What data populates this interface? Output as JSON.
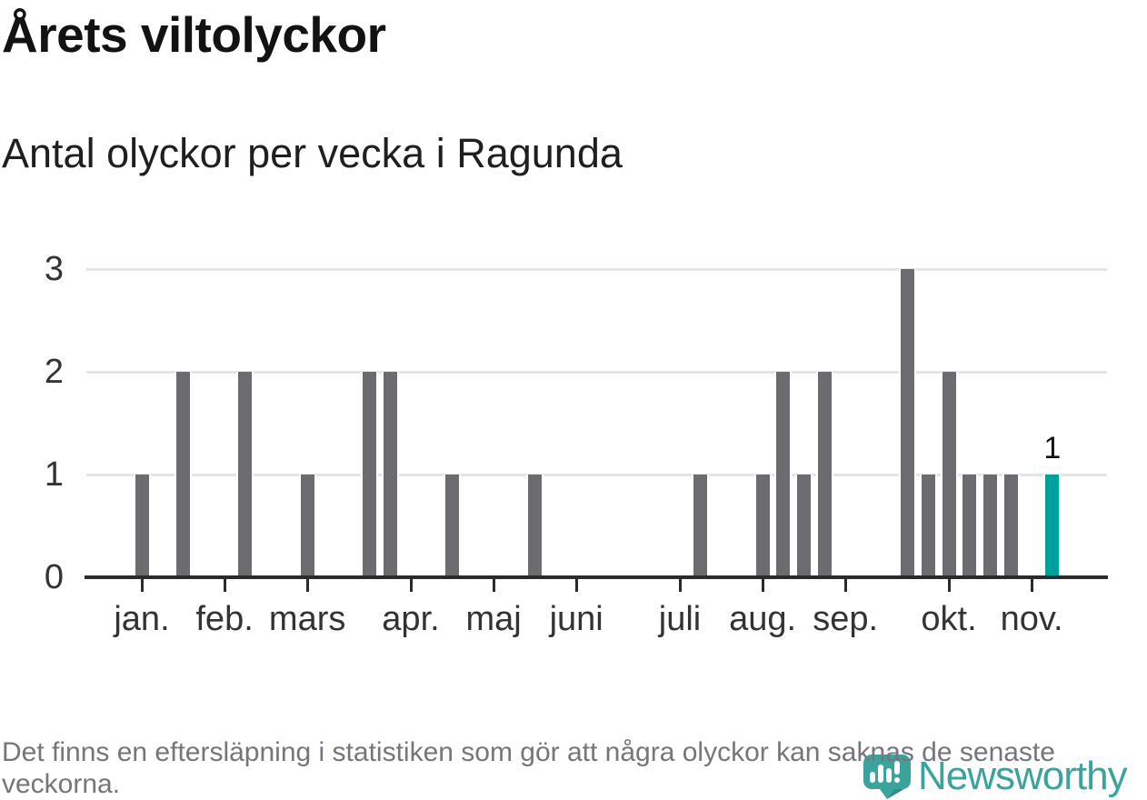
{
  "header": {
    "title": "Årets viltolyckor",
    "subtitle": "Antal olyckor per vecka i Ragunda"
  },
  "chart_data": {
    "type": "bar",
    "title": "Årets viltolyckor",
    "subtitle": "Antal olyckor per vecka i Ragunda",
    "x_unit": "week of year",
    "x_range_weeks": [
      1,
      47
    ],
    "ylim": [
      0,
      3
    ],
    "y_ticks": [
      0,
      1,
      2,
      3
    ],
    "grid": true,
    "legend": "none",
    "bar_color": "#6c6c70",
    "highlight_color": "#00a19a",
    "month_ticks": [
      {
        "label": "jan.",
        "week": 1
      },
      {
        "label": "feb.",
        "week": 5
      },
      {
        "label": "mars",
        "week": 9
      },
      {
        "label": "apr.",
        "week": 14
      },
      {
        "label": "maj",
        "week": 18
      },
      {
        "label": "juni",
        "week": 22
      },
      {
        "label": "juli",
        "week": 27
      },
      {
        "label": "aug.",
        "week": 31
      },
      {
        "label": "sep.",
        "week": 35
      },
      {
        "label": "okt.",
        "week": 40
      },
      {
        "label": "nov.",
        "week": 44
      }
    ],
    "points": [
      {
        "week": 1,
        "value": 1
      },
      {
        "week": 3,
        "value": 2
      },
      {
        "week": 6,
        "value": 2
      },
      {
        "week": 9,
        "value": 1
      },
      {
        "week": 12,
        "value": 2
      },
      {
        "week": 13,
        "value": 2
      },
      {
        "week": 16,
        "value": 1
      },
      {
        "week": 20,
        "value": 1
      },
      {
        "week": 28,
        "value": 1
      },
      {
        "week": 31,
        "value": 1
      },
      {
        "week": 32,
        "value": 2
      },
      {
        "week": 33,
        "value": 1
      },
      {
        "week": 34,
        "value": 2
      },
      {
        "week": 38,
        "value": 3
      },
      {
        "week": 39,
        "value": 1
      },
      {
        "week": 40,
        "value": 2
      },
      {
        "week": 41,
        "value": 1
      },
      {
        "week": 42,
        "value": 1
      },
      {
        "week": 43,
        "value": 1
      },
      {
        "week": 45,
        "value": 1,
        "highlight": true,
        "label": "1"
      }
    ]
  },
  "footer": {
    "note": "Det finns en eftersläpning i statistiken som gör att några olyckor kan saknas de senaste veckorna."
  },
  "logo": {
    "wordmark": "Newsworthy",
    "color": "#3aa49c"
  }
}
